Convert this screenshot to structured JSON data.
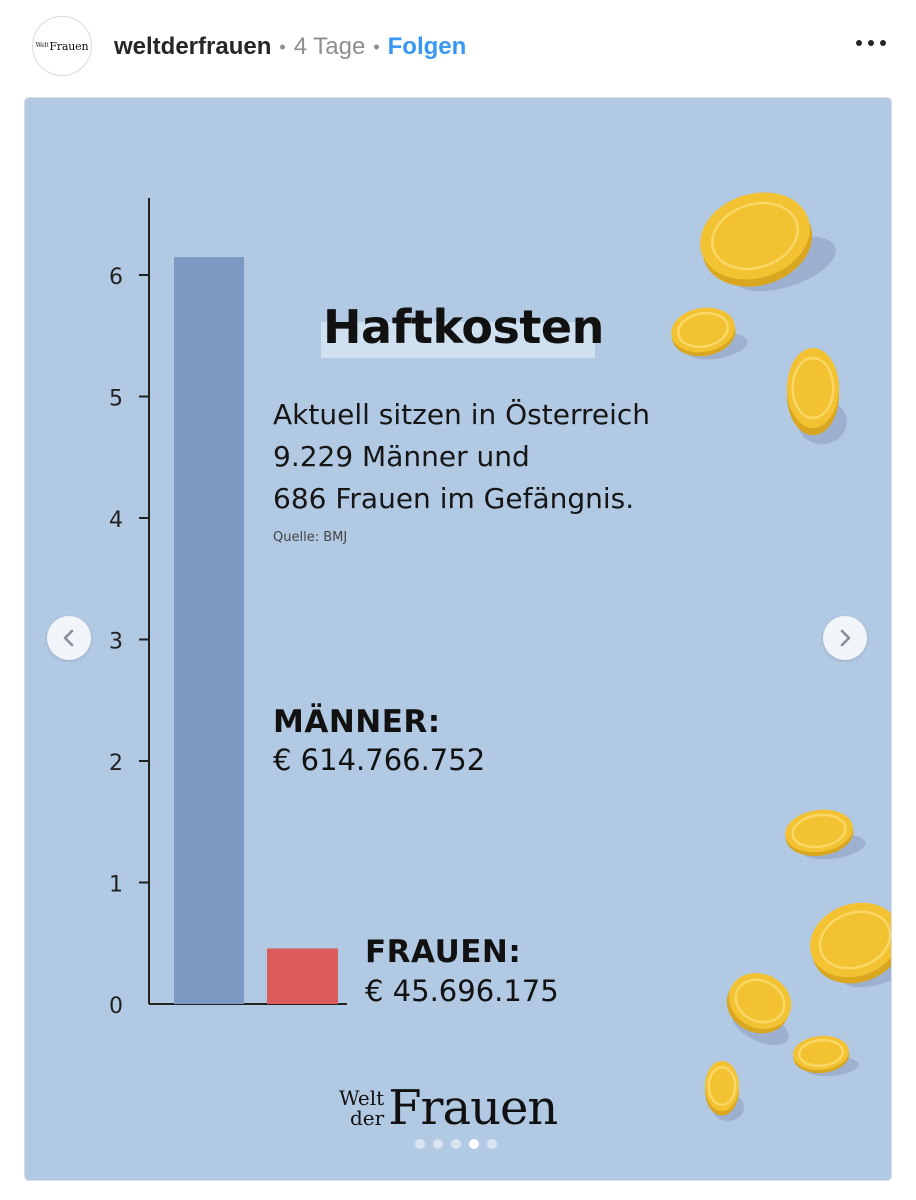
{
  "post_header": {
    "avatar_text_small": "Welt",
    "avatar_text_big": "Frauen",
    "username": "weltderfrauen",
    "separator": "•",
    "time_ago": "4 Tage",
    "follow_label": "Folgen"
  },
  "slide": {
    "title": "Haftkosten",
    "text_lines": [
      "Aktuell sitzen in Österreich",
      "9.229 Männer und",
      "686 Frauen im Gefängnis."
    ],
    "source": "Quelle: BMJ",
    "men_label": "MÄNNER:",
    "men_value": "€ 614.766.752",
    "women_label": "FRAUEN:",
    "women_value": "€ 45.696.175",
    "brand_small_1": "Welt",
    "brand_small_2": "der",
    "brand_big": "Frauen"
  },
  "carousel": {
    "slide_count": 5,
    "active_index": 3
  },
  "colors": {
    "background": "#b2c9e4",
    "men_bar": "#7b99c2",
    "women_bar": "#dc5c5c",
    "follow": "#3897f0",
    "coin": "#f2c232"
  },
  "chart_data": {
    "type": "bar",
    "categories": [
      "Männer",
      "Frauen"
    ],
    "values": [
      6.1477,
      0.457
    ],
    "ylim": [
      0,
      6.5
    ],
    "yticks": [
      0,
      1,
      2,
      3,
      4,
      5,
      6
    ],
    "grid": false,
    "legend": "none"
  }
}
